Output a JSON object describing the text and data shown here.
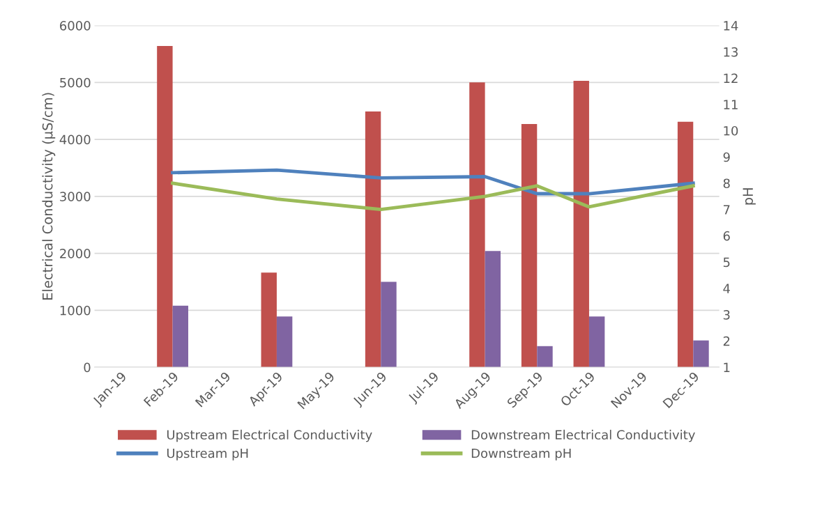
{
  "chart_data": {
    "type": "bar",
    "ylabel": "Electrical Conductivity (µS/cm)",
    "y2label": "pH",
    "categories": [
      "Jan-19",
      "Feb-19",
      "Mar-19",
      "Apr-19",
      "May-19",
      "Jun-19",
      "Jul-19",
      "Aug-19",
      "Sep-19",
      "Oct-19",
      "Nov-19",
      "Dec-19"
    ],
    "series": [
      {
        "name": "Upstream Electrical Conductivity",
        "color": "#c0504d",
        "values": [
          null,
          5640,
          null,
          1660,
          null,
          4490,
          null,
          5000,
          4270,
          5030,
          null,
          4310
        ]
      },
      {
        "name": "Downstream Electrical Conductivity",
        "color": "#8064a2",
        "values": [
          null,
          1080,
          null,
          890,
          null,
          1500,
          null,
          2040,
          370,
          890,
          null,
          470
        ]
      },
      {
        "name": "Upstream pH",
        "type": "line",
        "axis": "y2",
        "color": "#4f81bd",
        "values": [
          null,
          8.4,
          null,
          8.5,
          null,
          8.2,
          null,
          8.25,
          7.6,
          7.6,
          null,
          8.0
        ]
      },
      {
        "name": "Downstream pH",
        "type": "line",
        "axis": "y2",
        "color": "#9bbb59",
        "values": [
          null,
          8.0,
          null,
          7.4,
          null,
          7.0,
          null,
          7.5,
          7.9,
          7.1,
          null,
          7.9
        ]
      }
    ],
    "ylim": [
      0,
      6000
    ],
    "yticks": [
      0,
      1000,
      2000,
      3000,
      4000,
      5000,
      6000
    ],
    "y2lim": [
      1,
      14
    ],
    "y2ticks": [
      1,
      2,
      3,
      4,
      5,
      6,
      7,
      8,
      9,
      10,
      11,
      12,
      13,
      14
    ],
    "grid": "y",
    "legend": "bottom",
    "marker": "none",
    "line_style": "solid"
  }
}
